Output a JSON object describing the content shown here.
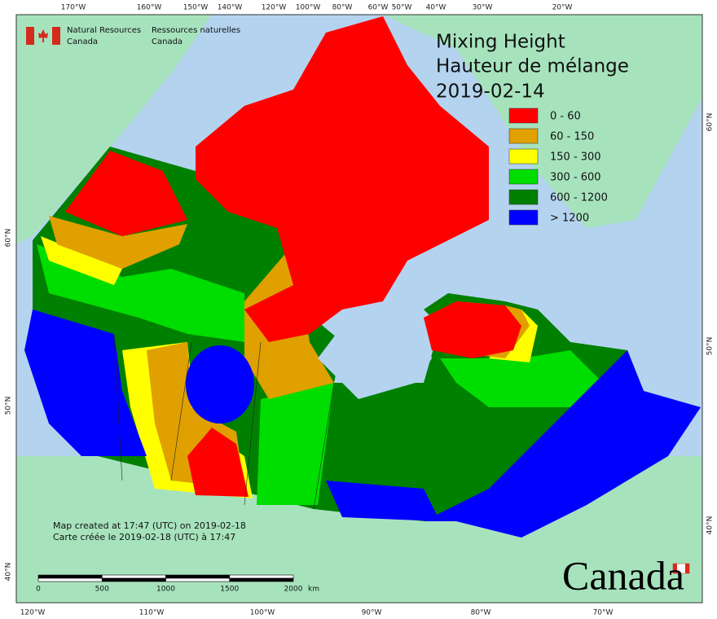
{
  "header": {
    "en_line1": "Natural Resources",
    "en_line2": "Canada",
    "fr_line1": "Ressources naturelles",
    "fr_line2": "Canada"
  },
  "title": [
    "Mixing Height",
    "Hauteur de mélange",
    "2019-02-14"
  ],
  "legend": [
    {
      "label": "0 - 60",
      "color": "#ff0000"
    },
    {
      "label": "60 - 150",
      "color": "#dfa000"
    },
    {
      "label": "150 - 300",
      "color": "#ffff00"
    },
    {
      "label": "300 - 600",
      "color": "#00dd00"
    },
    {
      "label": "600 - 1200",
      "color": "#008000"
    },
    {
      "label": "> 1200",
      "color": "#0000ff"
    }
  ],
  "notes": [
    "Map created at 17:47 (UTC) on 2019-02-18",
    "Carte créée le 2019-02-18 (UTC) à 17:47"
  ],
  "scale_bar": {
    "labels": [
      "0",
      "500",
      "1000",
      "1500",
      "2000"
    ],
    "unit": "km"
  },
  "graticule": {
    "top": [
      "170°W",
      "160°W",
      "150°W",
      "140°W",
      "120°W",
      "100°W",
      "80°W",
      "60°W",
      "50°W",
      "40°W",
      "30°W",
      "20°W"
    ],
    "bottom": [
      "120°W",
      "110°W",
      "100°W",
      "90°W",
      "80°W",
      "70°W"
    ],
    "left": [
      "60°N",
      "50°N",
      "40°N"
    ],
    "right": [
      "60°N",
      "50°N",
      "40°N"
    ]
  },
  "wordmark": "Canada"
}
